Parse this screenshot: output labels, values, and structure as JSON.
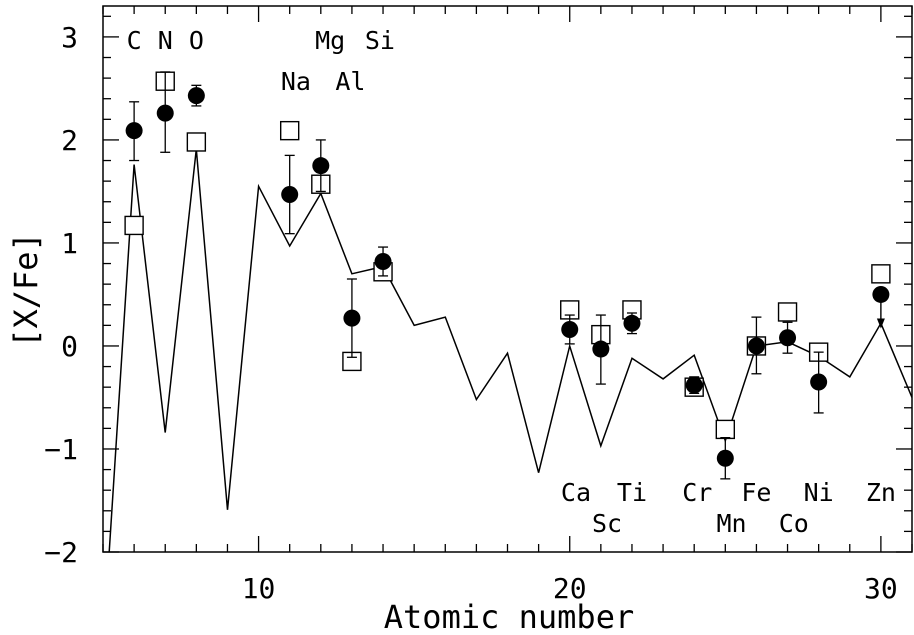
{
  "chart_data": {
    "type": "scatter",
    "title": "",
    "xlabel": "Atomic number",
    "ylabel": "[X/Fe]",
    "xlim": [
      5,
      31
    ],
    "ylim": [
      -2,
      3.3
    ],
    "xticks": [
      {
        "value": 10,
        "label": "10"
      },
      {
        "value": 20,
        "label": "20"
      },
      {
        "value": 30,
        "label": "30"
      }
    ],
    "yticks": [
      {
        "value": 3,
        "label": "3"
      },
      {
        "value": 2,
        "label": "2"
      },
      {
        "value": 1,
        "label": "1"
      },
      {
        "value": 0,
        "label": "0"
      },
      {
        "value": -1,
        "label": "−1"
      },
      {
        "value": -2,
        "label": "−2"
      }
    ],
    "filled_points": [
      {
        "x": 6,
        "y": 2.09,
        "err_up": 0.28,
        "err_down": 0.29
      },
      {
        "x": 7,
        "y": 2.26,
        "err_up": 0.4,
        "err_down": 0.38
      },
      {
        "x": 8,
        "y": 2.43,
        "err_up": 0.1,
        "err_down": 0.1
      },
      {
        "x": 11,
        "y": 1.47,
        "err_up": 0.38,
        "err_down": 0.38
      },
      {
        "x": 12,
        "y": 1.75,
        "err_up": 0.25,
        "err_down": 0.25
      },
      {
        "x": 13,
        "y": 0.27,
        "err_up": 0.38,
        "err_down": 0.38
      },
      {
        "x": 14,
        "y": 0.82,
        "err_up": 0.14,
        "err_down": 0.14
      },
      {
        "x": 20,
        "y": 0.16,
        "err_up": 0.14,
        "err_down": 0.14
      },
      {
        "x": 21,
        "y": -0.03,
        "err_up": 0.33,
        "err_down": 0.34
      },
      {
        "x": 22,
        "y": 0.22,
        "err_up": 0.1,
        "err_down": 0.1
      },
      {
        "x": 24,
        "y": -0.38,
        "err_up": 0.08,
        "err_down": 0.08
      },
      {
        "x": 25,
        "y": -1.09,
        "err_up": 0.2,
        "err_down": 0.2
      },
      {
        "x": 26,
        "y": 0.0,
        "err_up": 0.28,
        "err_down": 0.27
      },
      {
        "x": 27,
        "y": 0.08,
        "err_up": 0.15,
        "err_down": 0.15
      },
      {
        "x": 28,
        "y": -0.35,
        "err_up": 0.29,
        "err_down": 0.3
      },
      {
        "x": 30,
        "y": 0.5,
        "upper_limit": true
      }
    ],
    "open_points": [
      {
        "x": 6,
        "y": 1.17
      },
      {
        "x": 7,
        "y": 2.57
      },
      {
        "x": 8,
        "y": 1.98
      },
      {
        "x": 11,
        "y": 2.09
      },
      {
        "x": 12,
        "y": 1.57
      },
      {
        "x": 13,
        "y": -0.15
      },
      {
        "x": 14,
        "y": 0.72
      },
      {
        "x": 20,
        "y": 0.35
      },
      {
        "x": 21,
        "y": 0.11
      },
      {
        "x": 22,
        "y": 0.35
      },
      {
        "x": 24,
        "y": -0.4
      },
      {
        "x": 25,
        "y": -0.81
      },
      {
        "x": 26,
        "y": 0.0
      },
      {
        "x": 27,
        "y": 0.33
      },
      {
        "x": 28,
        "y": -0.06
      },
      {
        "x": 30,
        "y": 0.7
      }
    ],
    "model_line": [
      {
        "x": 5.2,
        "y": -2.0
      },
      {
        "x": 6,
        "y": 1.76
      },
      {
        "x": 7,
        "y": -0.84
      },
      {
        "x": 8,
        "y": 1.91
      },
      {
        "x": 9,
        "y": -1.59
      },
      {
        "x": 10,
        "y": 1.55
      },
      {
        "x": 11,
        "y": 0.97
      },
      {
        "x": 12,
        "y": 1.48
      },
      {
        "x": 13,
        "y": 0.7
      },
      {
        "x": 14,
        "y": 0.77
      },
      {
        "x": 15,
        "y": 0.2
      },
      {
        "x": 16,
        "y": 0.28
      },
      {
        "x": 17,
        "y": -0.52
      },
      {
        "x": 18,
        "y": -0.07
      },
      {
        "x": 19,
        "y": -1.23
      },
      {
        "x": 20,
        "y": 0.0
      },
      {
        "x": 21,
        "y": -0.97
      },
      {
        "x": 22,
        "y": -0.12
      },
      {
        "x": 23,
        "y": -0.32
      },
      {
        "x": 24,
        "y": -0.09
      },
      {
        "x": 25,
        "y": -0.92
      },
      {
        "x": 26,
        "y": 0.0
      },
      {
        "x": 27,
        "y": 0.04
      },
      {
        "x": 28,
        "y": -0.1
      },
      {
        "x": 29,
        "y": -0.3
      },
      {
        "x": 30,
        "y": 0.22
      },
      {
        "x": 31,
        "y": -0.5
      }
    ],
    "element_labels": [
      {
        "text": "C",
        "x": 6.0,
        "y": 2.97
      },
      {
        "text": "N",
        "x": 7.0,
        "y": 2.97
      },
      {
        "text": "O",
        "x": 8.0,
        "y": 2.97
      },
      {
        "text": "Mg",
        "x": 12.3,
        "y": 2.97
      },
      {
        "text": "Si",
        "x": 13.9,
        "y": 2.97
      },
      {
        "text": "Na",
        "x": 11.2,
        "y": 2.57
      },
      {
        "text": "Al",
        "x": 12.95,
        "y": 2.57
      },
      {
        "text": "Ca",
        "x": 20.2,
        "y": -1.42
      },
      {
        "text": "Ti",
        "x": 22.0,
        "y": -1.42
      },
      {
        "text": "Cr",
        "x": 24.1,
        "y": -1.42
      },
      {
        "text": "Fe",
        "x": 26.0,
        "y": -1.42
      },
      {
        "text": "Ni",
        "x": 28.0,
        "y": -1.42
      },
      {
        "text": "Zn",
        "x": 30.0,
        "y": -1.42
      },
      {
        "text": "Sc",
        "x": 21.2,
        "y": -1.72
      },
      {
        "text": "Mn",
        "x": 25.2,
        "y": -1.72
      },
      {
        "text": "Co",
        "x": 27.2,
        "y": -1.72
      }
    ]
  }
}
